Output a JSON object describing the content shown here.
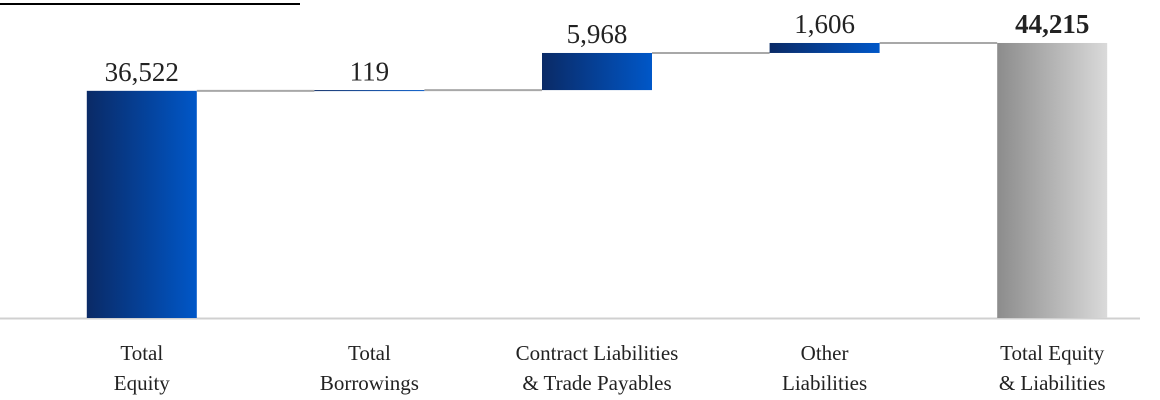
{
  "chart_data": {
    "type": "waterfall",
    "categories": [
      [
        "Total",
        "Equity"
      ],
      [
        "Total",
        "Borrowings"
      ],
      [
        "Contract Liabilities",
        "& Trade Payables"
      ],
      [
        "Other",
        "Liabilities"
      ],
      [
        "Total Equity",
        "& Liabilities"
      ]
    ],
    "values": [
      36522,
      119,
      5968,
      1606,
      44215
    ],
    "value_labels": [
      "36,522",
      "119",
      "5,968",
      "1,606",
      "44,215"
    ],
    "measure": [
      "absolute",
      "relative",
      "relative",
      "relative",
      "total"
    ],
    "colors": [
      "#0a2a66",
      "#0057c8"
    ],
    "total_colors": [
      "#8c8c8c",
      "#dadada"
    ],
    "ylim": [
      0,
      50000
    ]
  }
}
